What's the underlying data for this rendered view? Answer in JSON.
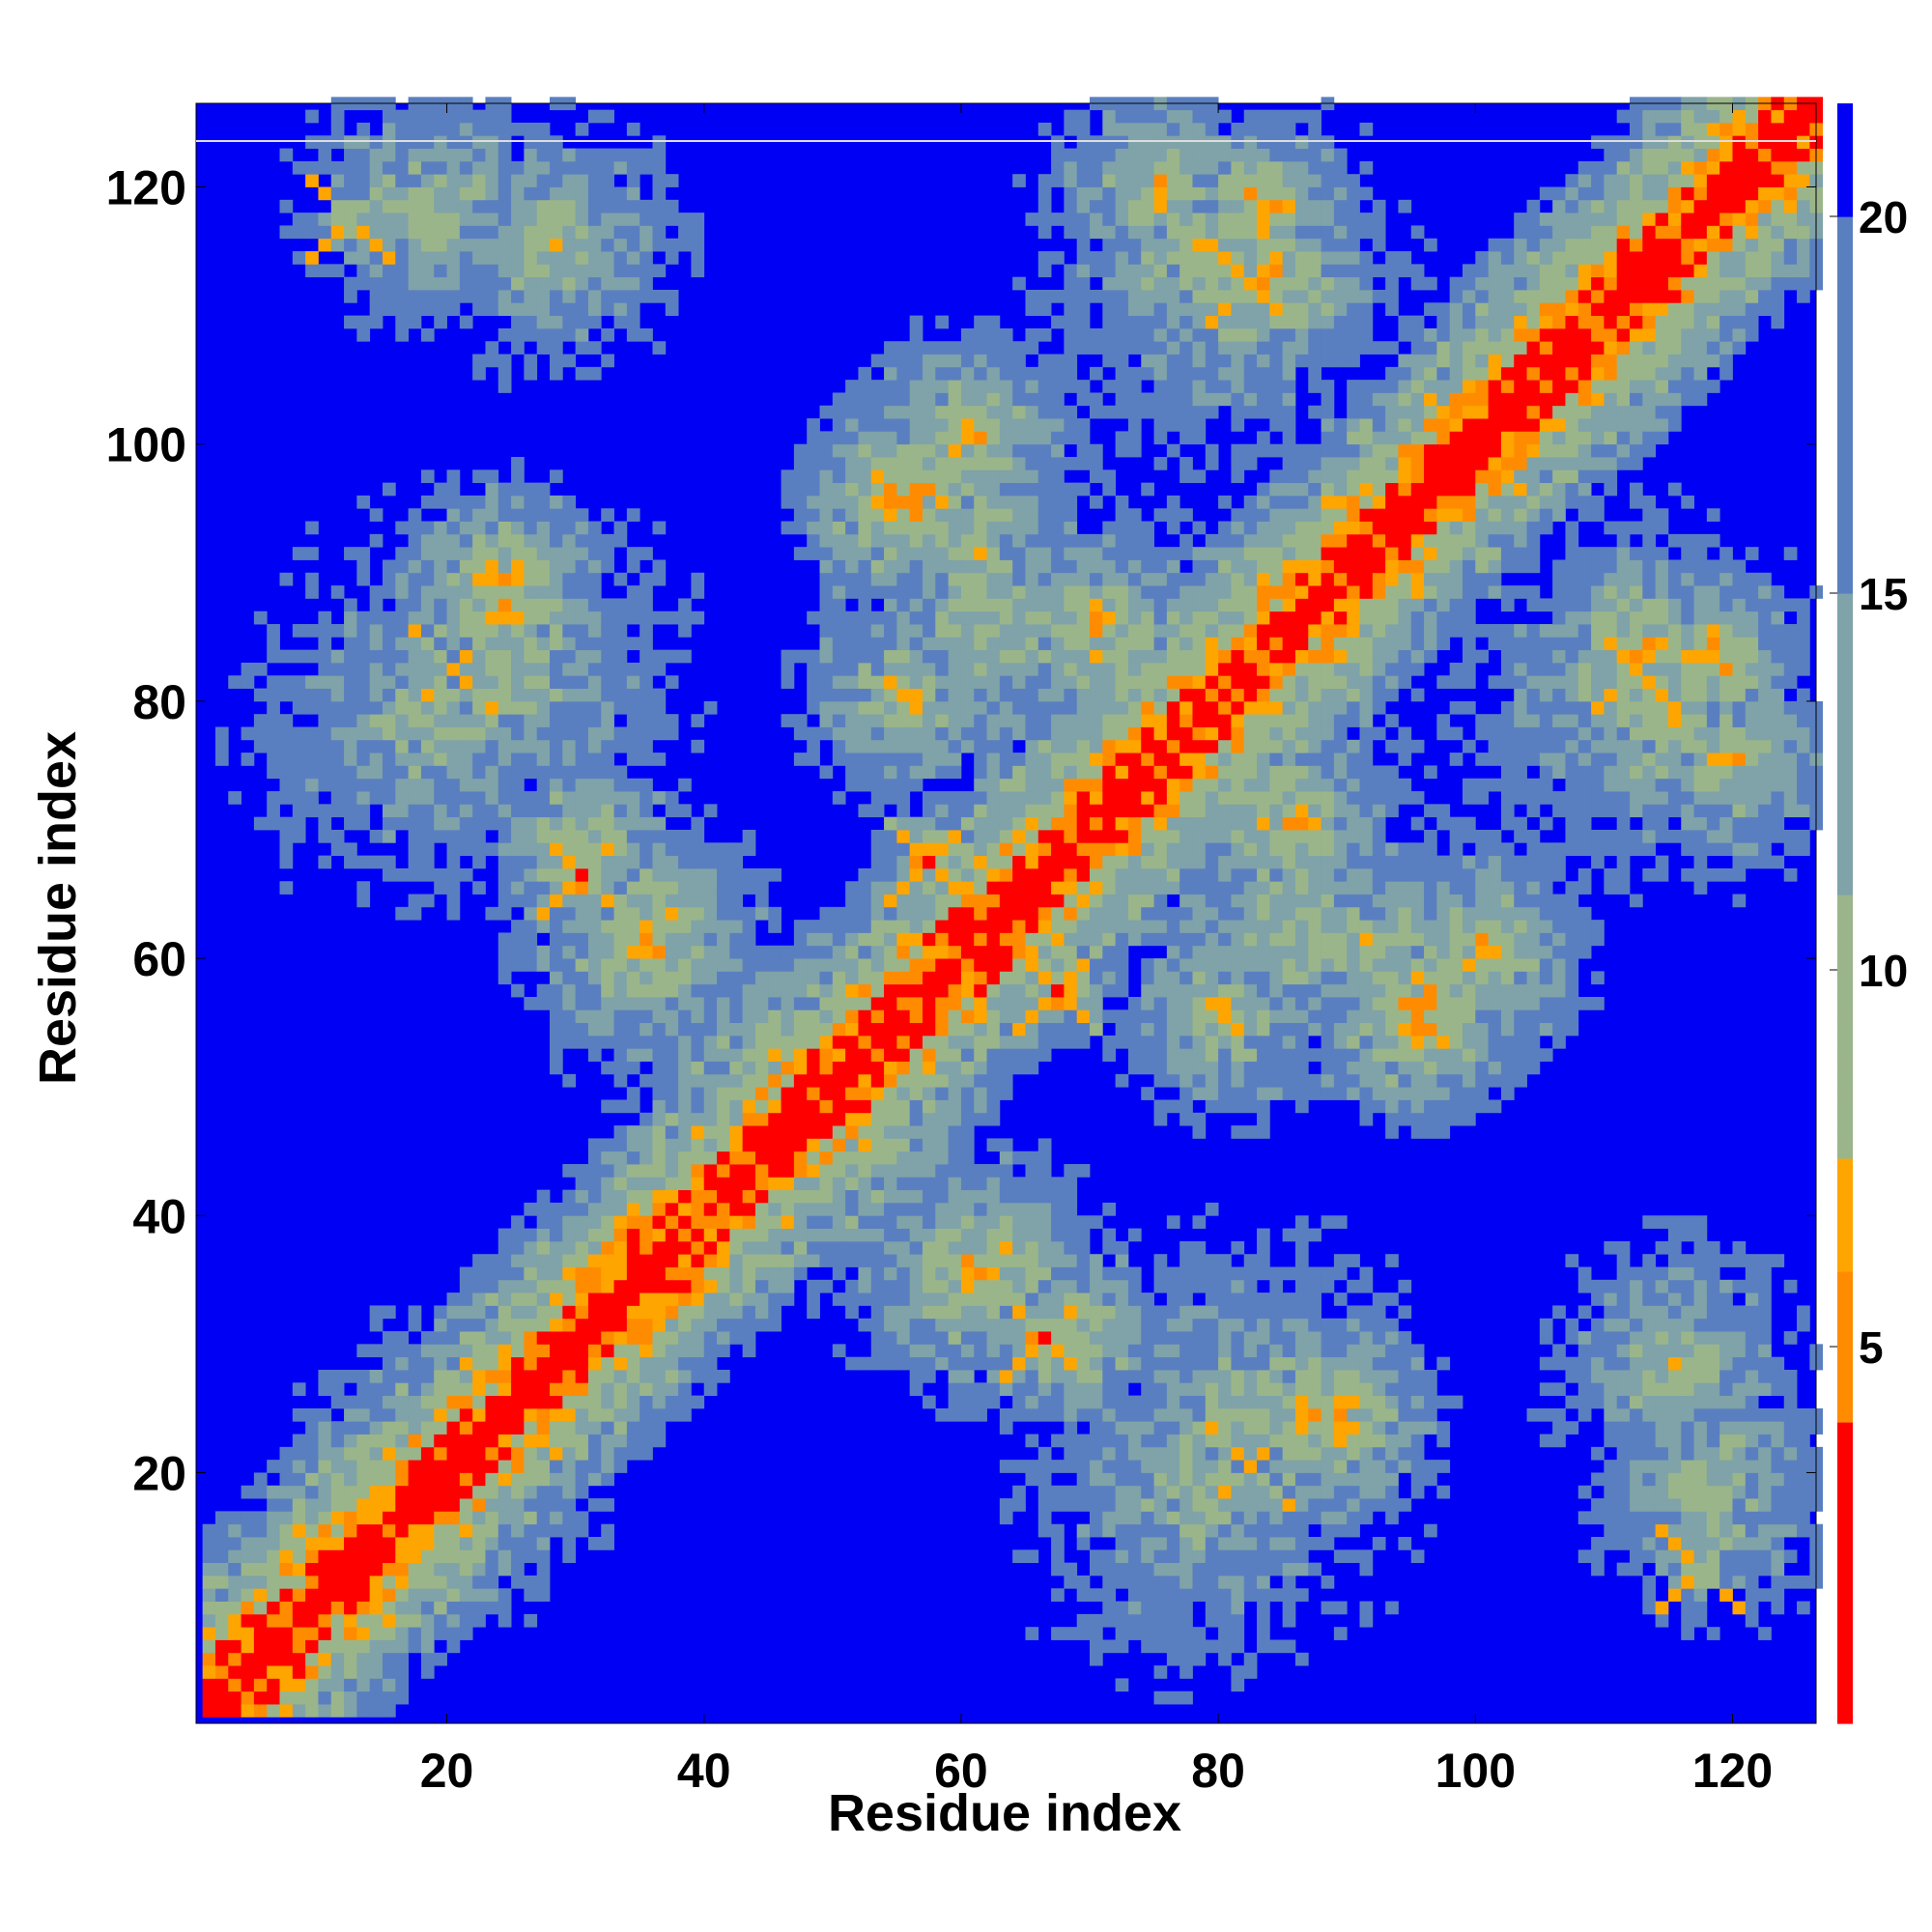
{
  "chart_data": {
    "type": "heatmap",
    "title": "",
    "xlabel": "Residue index",
    "ylabel": "Residue index",
    "n_residues": 126,
    "xlim": [
      1,
      126
    ],
    "ylim": [
      1,
      126
    ],
    "x_ticks": [
      20,
      40,
      60,
      80,
      100,
      120
    ],
    "y_ticks": [
      20,
      40,
      60,
      80,
      100,
      120
    ],
    "colorbar": {
      "ticks": [
        5,
        10,
        15,
        20
      ],
      "range": [
        0,
        21.5
      ],
      "placement": "right"
    },
    "colors": {
      "contact_close": "#ff0000",
      "contact_mid": "#ff8c00",
      "contact_near": "#ffa500",
      "neighborhood": "#9bb58a",
      "intermediate": "#7fa3a8",
      "far": "#5a7fc0",
      "background": "#0000f5"
    },
    "contact_features": [
      {
        "kind": "diagonal",
        "from": 1,
        "to": 126
      },
      {
        "kind": "hotspot",
        "x": 12,
        "y": 117
      },
      {
        "kind": "hotspot",
        "x": 117,
        "y": 12
      },
      {
        "kind": "hotspot",
        "x": 30,
        "y": 66
      },
      {
        "kind": "hotspot",
        "x": 66,
        "y": 30
      },
      {
        "kind": "hotspot",
        "x": 57,
        "y": 67
      },
      {
        "kind": "hotspot",
        "x": 67,
        "y": 57
      },
      {
        "kind": "hotspot",
        "x": 82,
        "y": 112
      },
      {
        "kind": "hotspot",
        "x": 112,
        "y": 82
      },
      {
        "kind": "hotspot",
        "x": 20,
        "y": 82
      },
      {
        "kind": "hotspot",
        "x": 82,
        "y": 20
      }
    ]
  }
}
